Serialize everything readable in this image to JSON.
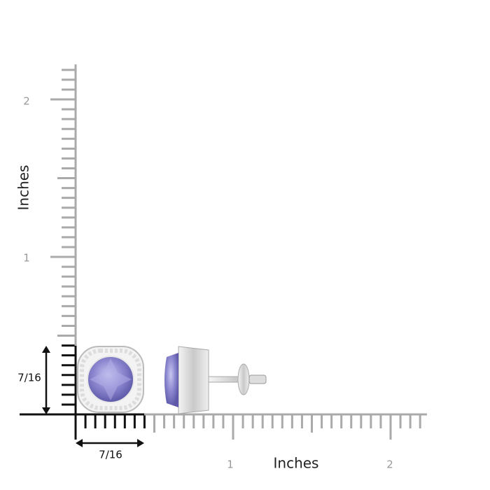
{
  "y_ruler": {
    "label": "Inches",
    "ticks": [
      "1",
      "2"
    ]
  },
  "x_ruler": {
    "label": "Inches",
    "ticks": [
      "1",
      "2"
    ]
  },
  "dimensions": {
    "height": "7/16",
    "width": "7/16"
  }
}
